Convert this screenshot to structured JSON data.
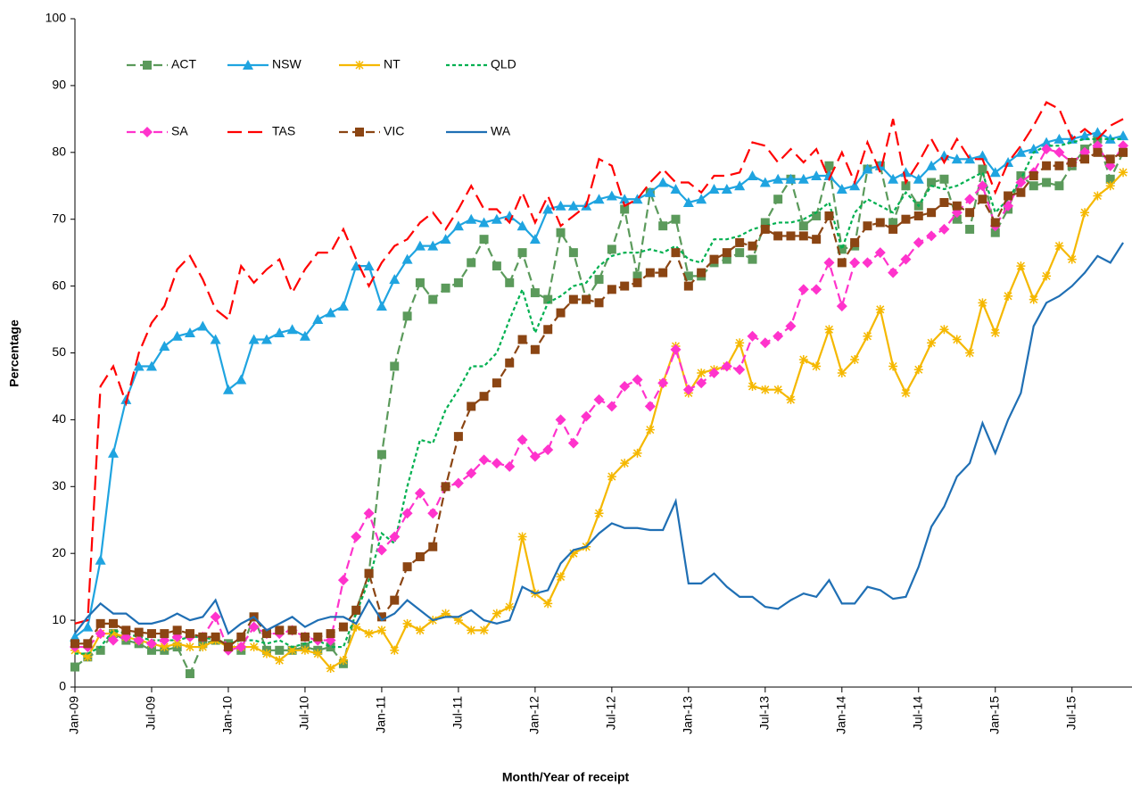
{
  "chart_data": {
    "type": "line",
    "y_label": "Percentage",
    "x_label": "Month/Year of receipt",
    "categories": [
      "Jan-09",
      null,
      null,
      null,
      null,
      null,
      "Jul-09",
      null,
      null,
      null,
      null,
      null,
      "Jan-10",
      null,
      null,
      null,
      null,
      null,
      "Jul-10",
      null,
      null,
      null,
      null,
      null,
      "Jan-11",
      null,
      null,
      null,
      null,
      null,
      "Jul-11",
      null,
      null,
      null,
      null,
      null,
      "Jan-12",
      null,
      null,
      null,
      null,
      null,
      "Jul-12",
      null,
      null,
      null,
      null,
      null,
      "Jan-13",
      null,
      null,
      null,
      null,
      null,
      "Jul-13",
      null,
      null,
      null,
      null,
      null,
      "Jan-14",
      null,
      null,
      null,
      null,
      null,
      "Jul-14",
      null,
      null,
      null,
      null,
      null,
      "Jan-15",
      null,
      null,
      null,
      null,
      null,
      "Jul-15",
      null,
      null,
      null,
      null
    ],
    "ylim": [
      0,
      100
    ],
    "yticks": [
      0,
      10,
      20,
      30,
      40,
      50,
      60,
      70,
      80,
      90,
      100
    ],
    "grid": false,
    "legend": "top-left",
    "series": [
      {
        "name": "ACT",
        "color": "#5b9a5b",
        "marker": "square",
        "dash": "dash",
        "values": [
          3,
          4.5,
          5.5,
          8,
          7,
          6.5,
          5.5,
          5.5,
          6,
          2,
          6.5,
          7,
          6.5,
          5.5,
          10.5,
          5.5,
          5.5,
          5.5,
          6,
          5.5,
          6,
          3.5,
          11.5,
          17,
          34.8,
          48,
          55.5,
          60.5,
          58,
          59.7,
          60.5,
          63.5,
          67,
          63,
          60.5,
          65,
          59,
          58,
          68,
          65,
          58,
          61,
          65.5,
          71.5,
          61.5,
          74,
          69,
          70,
          61.5,
          61.5,
          63.5,
          64,
          65,
          64,
          69.5,
          73,
          76,
          69,
          70.5,
          78,
          65.5,
          66,
          77.5,
          78,
          69.5,
          75,
          72,
          75.5,
          76,
          70,
          68.5,
          77.5,
          68,
          71.5,
          76.5,
          75,
          75.5,
          75,
          78,
          80.5,
          82,
          76,
          80
        ]
      },
      {
        "name": "NSW",
        "color": "#1fa4e0",
        "marker": "triangle",
        "dash": "solid",
        "values": [
          7.5,
          9,
          19,
          35,
          43,
          48,
          48,
          51,
          52.5,
          53,
          54,
          52,
          44.5,
          46,
          52,
          52,
          53,
          53.5,
          52.5,
          55,
          56,
          57,
          63,
          63,
          57,
          61,
          64,
          66,
          66,
          67,
          69,
          70,
          69.5,
          70,
          70.5,
          69,
          67,
          71.5,
          72,
          72,
          72,
          73,
          73.5,
          73,
          73,
          74,
          75.5,
          74.5,
          72.5,
          73,
          74.5,
          74.5,
          75,
          76.5,
          75.5,
          76,
          76,
          76,
          76.5,
          76.5,
          74.5,
          75,
          77.5,
          78,
          76,
          77,
          76,
          78,
          79.5,
          79,
          79,
          79.5,
          77,
          78.5,
          80,
          80.5,
          81.5,
          82,
          82,
          82.5,
          83,
          82,
          82.5
        ]
      },
      {
        "name": "NT",
        "color": "#f5b800",
        "marker": "star",
        "dash": "solid",
        "values": [
          5.5,
          4.5,
          8,
          8,
          7.5,
          7,
          6.5,
          6,
          6.5,
          6,
          6,
          7,
          6,
          6,
          6,
          5,
          4,
          5.5,
          5.5,
          5,
          2.8,
          4,
          9,
          8,
          8.5,
          5.5,
          9.5,
          8.5,
          10,
          11,
          10,
          8.5,
          8.5,
          11,
          12,
          22.5,
          14,
          12.5,
          16.5,
          20,
          21,
          26,
          31.5,
          33.5,
          35,
          38.5,
          45.5,
          51,
          44,
          47,
          47.5,
          48,
          51.5,
          45,
          44.5,
          44.5,
          43,
          49,
          48,
          53.5,
          47,
          49,
          52.5,
          56.5,
          48,
          44,
          47.5,
          51.5,
          53.5,
          52,
          50,
          57.5,
          53,
          58.5,
          63,
          58,
          61.5,
          66,
          64,
          71,
          73.5,
          75,
          77
        ]
      },
      {
        "name": "QLD",
        "color": "#00b050",
        "marker": "none",
        "dash": "short-dash",
        "values": [
          5,
          5,
          6,
          8.5,
          8,
          7.5,
          7,
          7,
          7,
          7.5,
          7.5,
          7,
          6.5,
          7,
          7,
          6.5,
          7,
          6,
          6.5,
          7,
          6,
          6,
          11,
          16,
          23,
          21.5,
          30,
          37,
          36.5,
          41.5,
          44.5,
          48,
          48,
          50,
          55,
          59.5,
          53,
          57.5,
          58.5,
          60,
          60.5,
          63,
          64.5,
          65,
          65,
          65.5,
          65,
          66,
          64,
          63.5,
          67,
          67,
          67.5,
          68.5,
          69,
          69.5,
          69.5,
          70,
          71,
          72.5,
          65.5,
          71,
          73,
          72,
          71,
          74,
          72,
          75,
          74.5,
          75,
          76,
          77,
          71,
          73,
          76,
          80,
          81,
          81,
          81.5,
          82,
          82,
          82,
          82
        ]
      },
      {
        "name": "SA",
        "color": "#ff33cc",
        "marker": "diamond",
        "dash": "dash",
        "values": [
          6,
          6,
          8,
          7,
          7.5,
          7,
          6.5,
          7,
          7.5,
          7.5,
          7.5,
          10.5,
          5.5,
          6,
          9,
          8,
          8,
          8.5,
          7.5,
          7,
          7,
          16,
          22.5,
          26,
          20.5,
          22.5,
          26,
          29,
          26,
          30,
          30.5,
          32,
          34,
          33.5,
          33,
          37,
          34.5,
          35.5,
          40,
          36.5,
          40.5,
          43,
          42,
          45,
          46,
          42,
          45.5,
          50.5,
          44.5,
          45.5,
          47,
          48,
          47.5,
          52.5,
          51.5,
          52.5,
          54,
          59.5,
          59.5,
          63.5,
          57,
          63.5,
          63.5,
          65,
          62,
          64,
          66.5,
          67.5,
          68.5,
          71,
          73,
          75,
          69,
          72,
          75.5,
          77,
          80.5,
          80,
          78.5,
          80,
          81,
          78,
          81
        ]
      },
      {
        "name": "TAS",
        "color": "#ff0000",
        "marker": "none",
        "dash": "long-dash",
        "values": [
          9.5,
          10,
          45,
          48,
          42.5,
          50,
          54.5,
          57,
          62.5,
          64.5,
          61,
          56.5,
          55,
          63,
          60.5,
          62.5,
          64,
          59,
          62.5,
          65,
          65,
          68.5,
          64,
          60,
          63.5,
          66,
          67,
          69.5,
          71,
          68.5,
          71.5,
          75,
          71.5,
          71.5,
          69.5,
          74,
          69.5,
          73.5,
          69,
          70.5,
          72,
          79,
          78,
          72,
          73,
          75.5,
          77.5,
          75.5,
          75.5,
          74,
          76.5,
          76.5,
          77,
          81.5,
          81,
          78.5,
          80.5,
          78.5,
          80.5,
          76,
          80,
          75.5,
          81.5,
          77,
          85,
          75.5,
          78.5,
          82,
          78.5,
          82,
          79,
          79,
          74,
          78.5,
          81,
          84,
          87.5,
          86.5,
          82,
          83.5,
          82,
          84,
          85
        ]
      },
      {
        "name": "VIC",
        "color": "#8b4513",
        "marker": "square",
        "dash": "dash",
        "values": [
          6.5,
          6.5,
          9.5,
          9.5,
          8.5,
          8.2,
          8,
          8,
          8.5,
          8,
          7.5,
          7.5,
          6,
          7.5,
          10.5,
          8,
          8.5,
          8.5,
          7.5,
          7.5,
          8,
          9,
          11.5,
          17,
          10.5,
          13,
          18,
          19.5,
          21,
          30,
          37.5,
          42,
          43.5,
          45.5,
          48.5,
          52,
          50.5,
          53.5,
          56,
          58,
          58,
          57.5,
          59.5,
          60,
          60.5,
          62,
          62,
          65,
          60,
          62,
          64,
          65,
          66.5,
          66,
          68.5,
          67.5,
          67.5,
          67.5,
          67,
          70.5,
          63.5,
          66.5,
          69,
          69.5,
          68.5,
          70,
          70.5,
          71,
          72.5,
          72,
          71,
          73,
          69.5,
          73.5,
          74,
          76.5,
          78,
          78,
          78.5,
          79,
          80,
          79,
          80
        ]
      },
      {
        "name": "WA",
        "color": "#1f6fb4",
        "marker": "none",
        "dash": "solid",
        "values": [
          8,
          10.5,
          12.5,
          11,
          11,
          9.5,
          9.5,
          10,
          11,
          10,
          10.5,
          13,
          8,
          9.5,
          10.5,
          8.5,
          9.5,
          10.5,
          9,
          10,
          10.5,
          10.5,
          9.5,
          13,
          10,
          11,
          13,
          11.5,
          10,
          10.5,
          10.5,
          11.5,
          10,
          9.5,
          10,
          15,
          14,
          14.5,
          18.5,
          20.5,
          21,
          23,
          24.5,
          23.8,
          23.8,
          23.5,
          23.5,
          27.8,
          15.5,
          15.5,
          17,
          15,
          13.5,
          13.5,
          12,
          11.7,
          13,
          14,
          13.5,
          16,
          12.5,
          12.5,
          15,
          14.5,
          13.2,
          13.5,
          18,
          24,
          27,
          31.5,
          33.5,
          39.5,
          35,
          40,
          44,
          54,
          57.5,
          58.5,
          60,
          62,
          64.5,
          63.5,
          66.5
        ]
      }
    ]
  }
}
